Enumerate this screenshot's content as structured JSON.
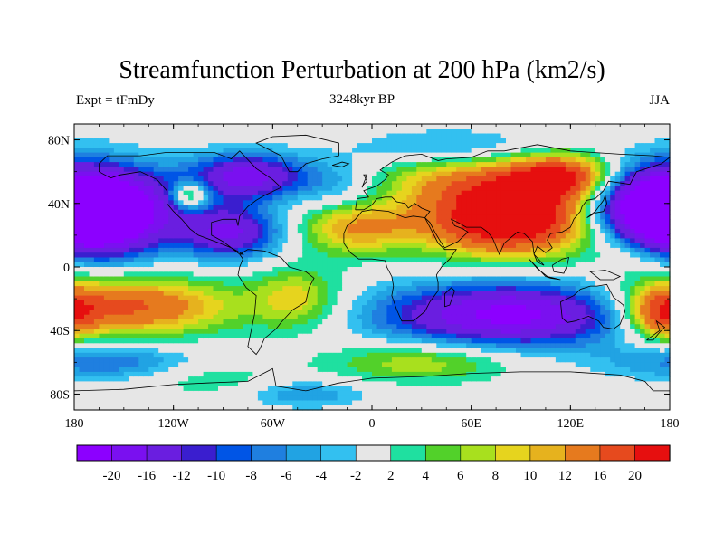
{
  "header": {
    "title": "Streamfunction Perturbation at 200 hPa (km2/s)",
    "subtitle": "3248kyr BP",
    "left_note": "Expt = tFmDy",
    "right_note": "JJA"
  },
  "colors": {
    "palette": [
      "#8c00ff",
      "#7a10f0",
      "#6a1ee0",
      "#3a1ecf",
      "#0055e6",
      "#1f7fe0",
      "#21a3e3",
      "#33c0f0",
      "#e6e6e6",
      "#1fe0a0",
      "#52d12a",
      "#a8e01e",
      "#e6d41e",
      "#e6b21e",
      "#e67a1e",
      "#e64a1e",
      "#e60f0f"
    ]
  },
  "chart_data": {
    "type": "heatmap",
    "title": "Streamfunction Perturbation at 200 hPa (km2/s)",
    "subtitle": "3248kyr BP",
    "xlim": [
      -180,
      180
    ],
    "ylim": [
      -90,
      90
    ],
    "x_ticks": [
      {
        "value": -180,
        "label": "180"
      },
      {
        "value": -120,
        "label": "120W"
      },
      {
        "value": -60,
        "label": "60W"
      },
      {
        "value": 0,
        "label": "0"
      },
      {
        "value": 60,
        "label": "60E"
      },
      {
        "value": 120,
        "label": "120E"
      },
      {
        "value": 180,
        "label": "180"
      }
    ],
    "y_ticks": [
      {
        "value": 80,
        "label": "80N"
      },
      {
        "value": 40,
        "label": "40N"
      },
      {
        "value": 0,
        "label": "0"
      },
      {
        "value": -40,
        "label": "40S"
      },
      {
        "value": -80,
        "label": "80S"
      }
    ],
    "colorbar_labels": [
      "-20",
      "-16",
      "-12",
      "-10",
      "-8",
      "-6",
      "-4",
      "-2",
      "2",
      "4",
      "6",
      "8",
      "10",
      "12",
      "16",
      "20"
    ],
    "colorbar_levels": [
      -20,
      -16,
      -12,
      -10,
      -8,
      -6,
      -4,
      -2,
      2,
      4,
      6,
      8,
      10,
      12,
      16,
      20
    ],
    "features": [
      {
        "lon": 85,
        "lat": 30,
        "amp": 28,
        "wlon": 38,
        "wlat": 16
      },
      {
        "lon": 60,
        "lat": 55,
        "amp": 10,
        "wlon": 40,
        "wlat": 12
      },
      {
        "lon": 115,
        "lat": 57,
        "amp": 18,
        "wlon": 22,
        "wlat": 10
      },
      {
        "lon": -10,
        "lat": 25,
        "amp": 12,
        "wlon": 25,
        "wlat": 12
      },
      {
        "lon": 160,
        "lat": 10,
        "amp": 6,
        "wlon": 20,
        "wlat": 14
      },
      {
        "lon": -110,
        "lat": 45,
        "amp": 14,
        "wlon": 8,
        "wlat": 6
      },
      {
        "lon": -150,
        "lat": -25,
        "amp": 18,
        "wlon": 45,
        "wlat": 13
      },
      {
        "lon": -45,
        "lat": -20,
        "amp": 9,
        "wlon": 20,
        "wlat": 14
      },
      {
        "lon": 30,
        "lat": -60,
        "amp": 8,
        "wlon": 40,
        "wlat": 9
      },
      {
        "lon": 175,
        "lat": -30,
        "amp": 14,
        "wlon": 14,
        "wlat": 12
      },
      {
        "lon": -100,
        "lat": -70,
        "amp": 4,
        "wlon": 30,
        "wlat": 8
      },
      {
        "lon": -170,
        "lat": 35,
        "amp": -24,
        "wlon": 35,
        "wlat": 18
      },
      {
        "lon": 180,
        "lat": 35,
        "amp": -24,
        "wlon": 30,
        "wlat": 18
      },
      {
        "lon": -85,
        "lat": 22,
        "amp": -16,
        "wlon": 22,
        "wlat": 12
      },
      {
        "lon": -75,
        "lat": 57,
        "amp": -18,
        "wlon": 25,
        "wlat": 10
      },
      {
        "lon": 50,
        "lat": 75,
        "amp": -6,
        "wlon": 40,
        "wlat": 8
      },
      {
        "lon": 85,
        "lat": -30,
        "amp": -22,
        "wlon": 55,
        "wlat": 14
      },
      {
        "lon": -160,
        "lat": -60,
        "amp": -8,
        "wlon": 40,
        "wlat": 8
      },
      {
        "lon": -40,
        "lat": -80,
        "amp": -6,
        "wlon": 25,
        "wlat": 6
      },
      {
        "lon": -20,
        "lat": 50,
        "amp": -5,
        "wlon": 18,
        "wlat": 12
      }
    ]
  }
}
